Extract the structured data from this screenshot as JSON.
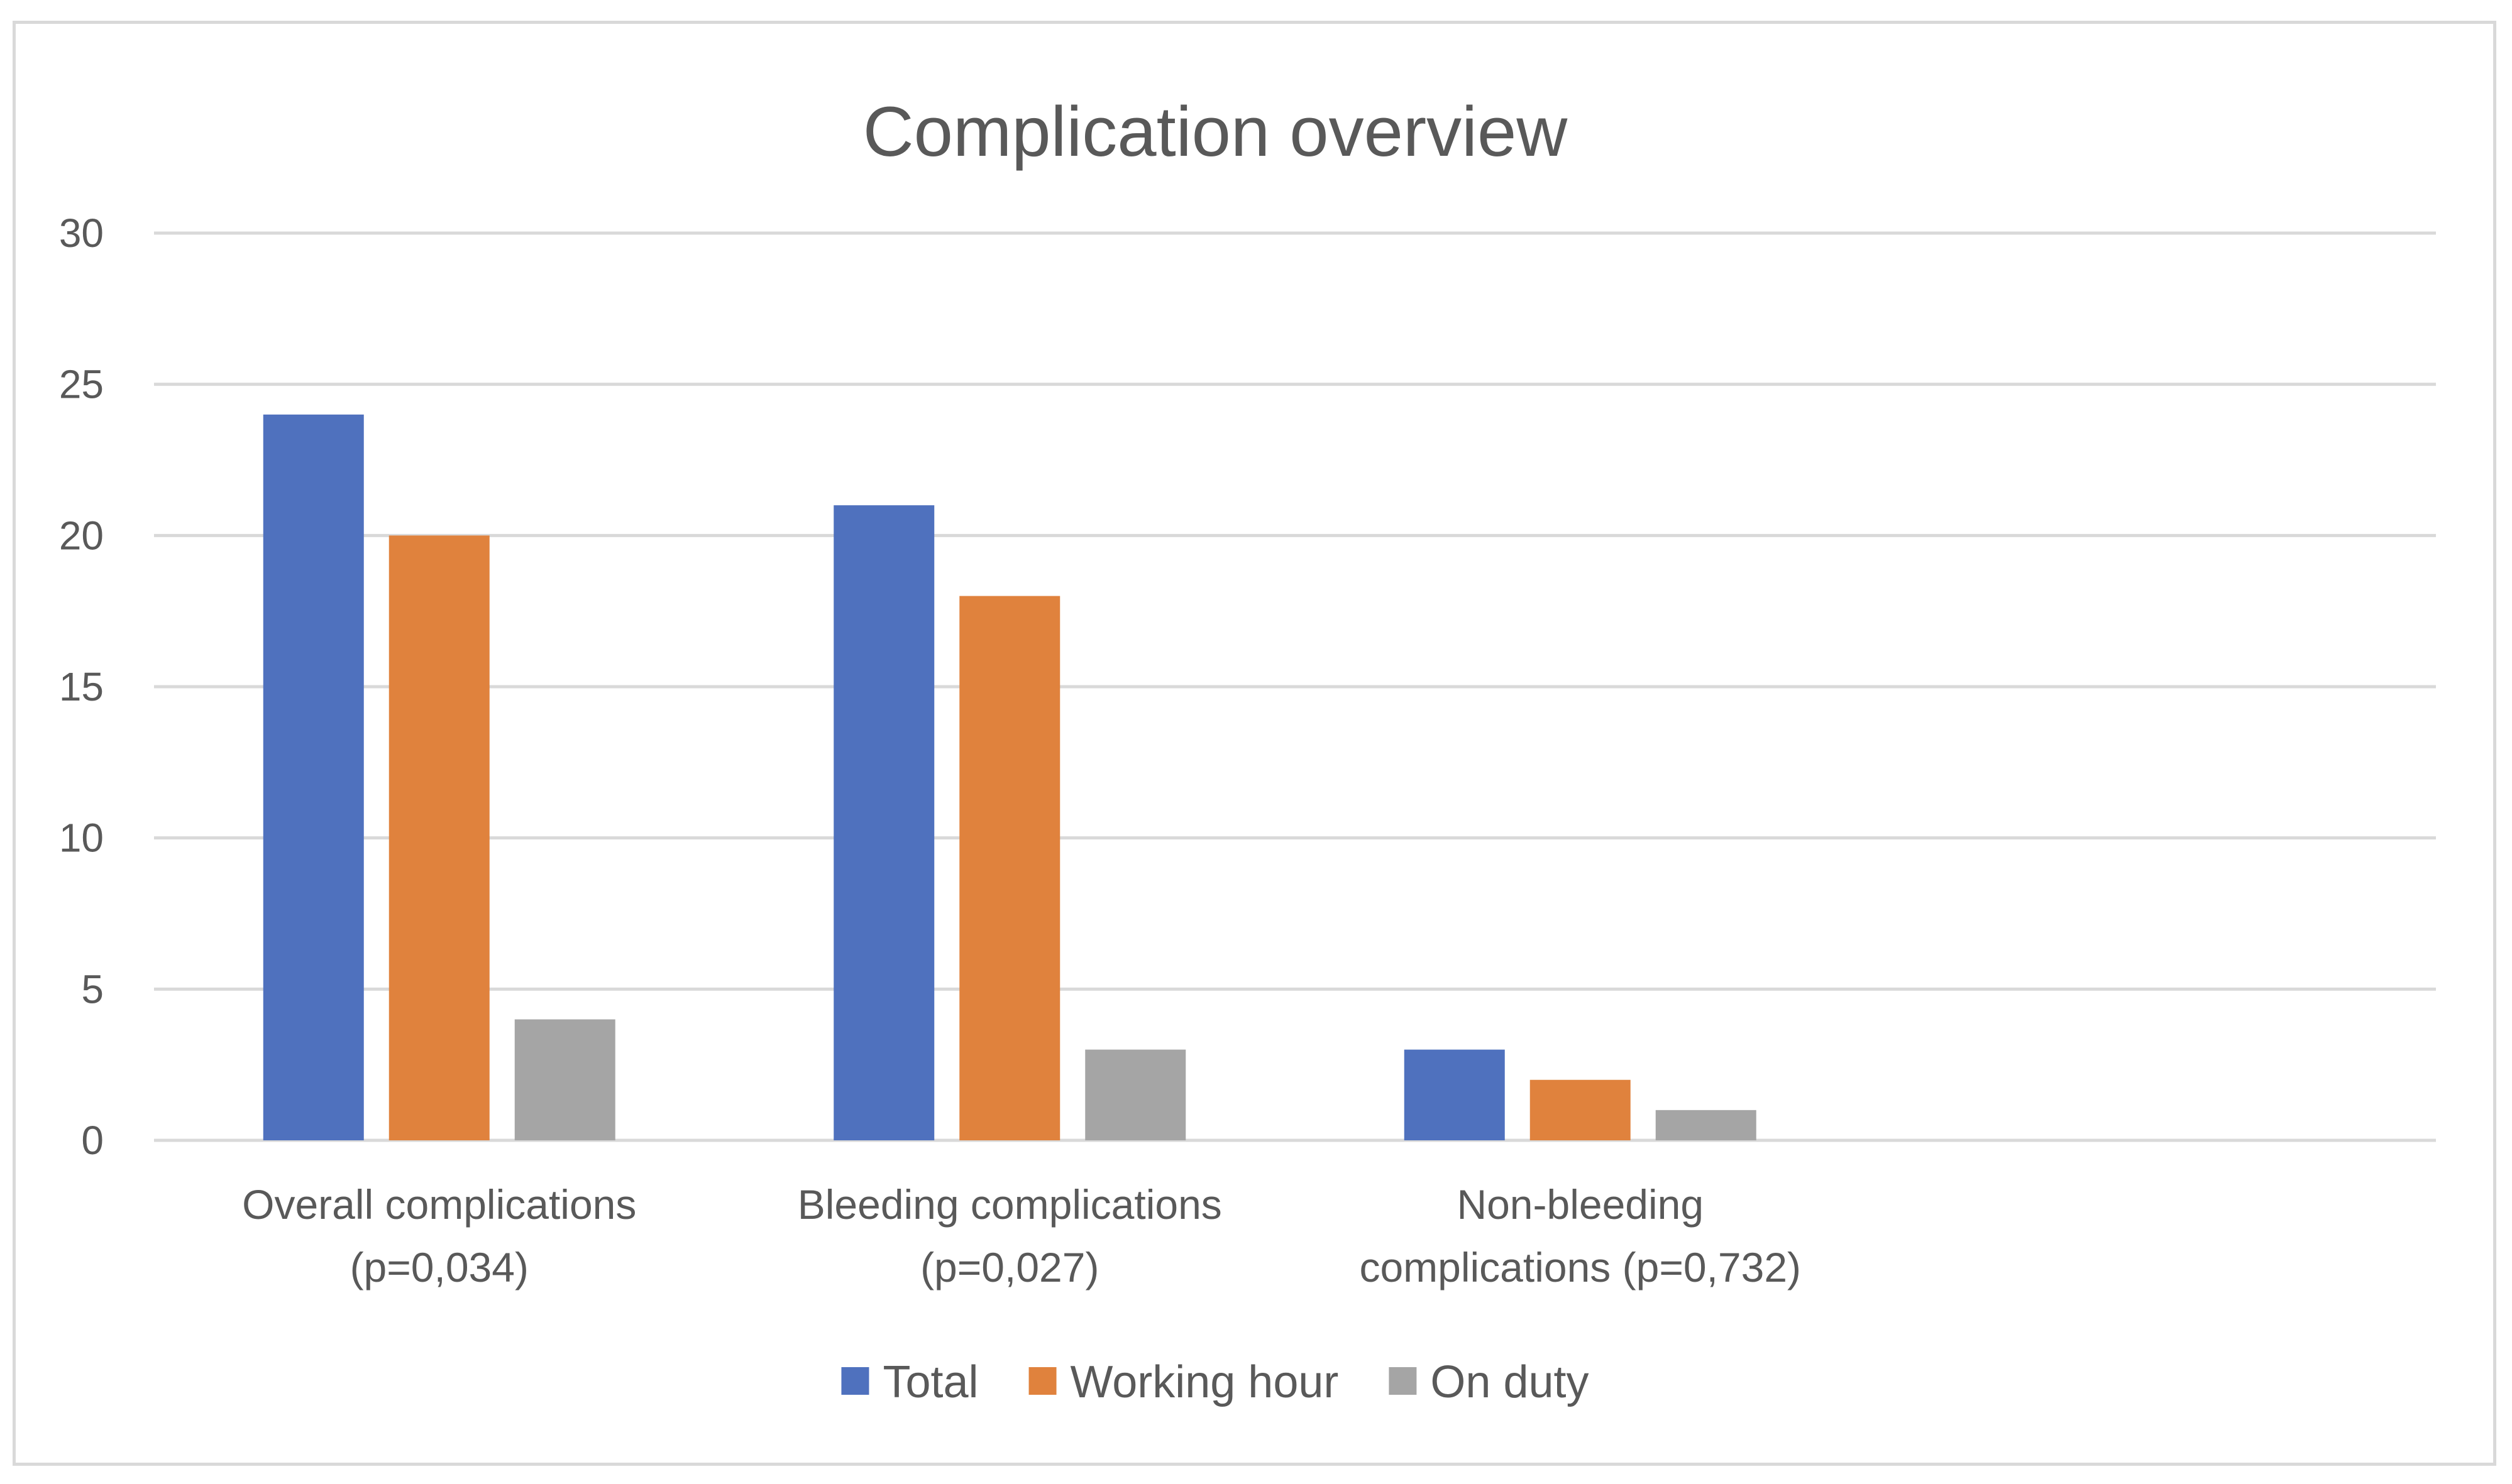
{
  "chart_data": {
    "type": "bar",
    "title": "Complication overview",
    "xlabel": "",
    "ylabel": "",
    "ylim": [
      0,
      30
    ],
    "yticks": [
      0,
      5,
      10,
      15,
      20,
      25,
      30
    ],
    "grid": true,
    "legend_position": "bottom",
    "categories": [
      [
        "Overall complications",
        "(p=0,034)"
      ],
      [
        "Bleeding complications",
        "(p=0,027)"
      ],
      [
        "Non-bleeding",
        "complications (p=0,732)"
      ],
      [
        "",
        ""
      ]
    ],
    "series": [
      {
        "name": "Total",
        "color": "#4f71be",
        "values": [
          24,
          21,
          3,
          null
        ]
      },
      {
        "name": "Working hour",
        "color": "#e0823d",
        "values": [
          20,
          18,
          2,
          null
        ]
      },
      {
        "name": "On duty",
        "color": "#a5a5a5",
        "values": [
          4,
          3,
          1,
          null
        ]
      }
    ]
  }
}
